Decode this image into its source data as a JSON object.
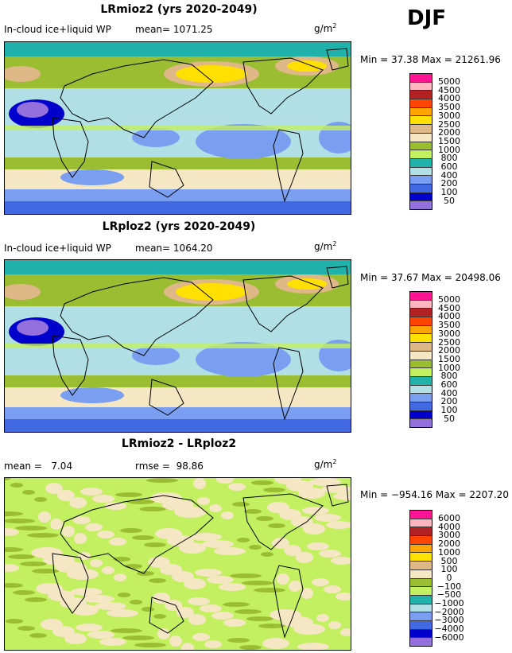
{
  "season": "DJF",
  "colors": [
    "#ff1493",
    "#ffb6c1",
    "#b22222",
    "#ff4500",
    "#ffa500",
    "#ffe000",
    "#deb887",
    "#f5e6c4",
    "#9abd32",
    "#c3f060",
    "#20b2aa",
    "#b0e0e6",
    "#7b9ff0",
    "#4169e1",
    "#0000cd",
    "#9370db"
  ],
  "panels": [
    {
      "title": "LRmioz2 (yrs 2020-2049)",
      "variable": "In-cloud ice+liquid WP",
      "mean_label": "mean=",
      "mean": "1071.25",
      "units": "g/m",
      "units_exp": "2",
      "minmax": "Min =   37.38 Max = 21261.96",
      "levels": [
        "5000",
        "4500",
        "4000",
        "3500",
        "3000",
        "2500",
        "2000",
        "1500",
        "1000",
        "800",
        "600",
        "400",
        "200",
        "100",
        "50"
      ]
    },
    {
      "title": "LRploz2 (yrs 2020-2049)",
      "variable": "In-cloud ice+liquid WP",
      "mean_label": "mean=",
      "mean": "1064.20",
      "units": "g/m",
      "units_exp": "2",
      "minmax": "Min =   37.67 Max = 20498.06",
      "levels": [
        "5000",
        "4500",
        "4000",
        "3500",
        "3000",
        "2500",
        "2000",
        "1500",
        "1000",
        "800",
        "600",
        "400",
        "200",
        "100",
        "50"
      ]
    },
    {
      "title": "LRmioz2 - LRploz2",
      "mean_label": "mean =",
      "mean": "7.04",
      "rmse_label": "rmse =",
      "rmse": "98.86",
      "units": "g/m",
      "units_exp": "2",
      "minmax": "Min = −954.16 Max = 2207.20",
      "levels": [
        "6000",
        "4000",
        "3000",
        "2000",
        "1000",
        "500",
        "100",
        "0",
        "−100",
        "−500",
        "−1000",
        "−2000",
        "−3000",
        "−4000",
        "−6000"
      ]
    }
  ]
}
